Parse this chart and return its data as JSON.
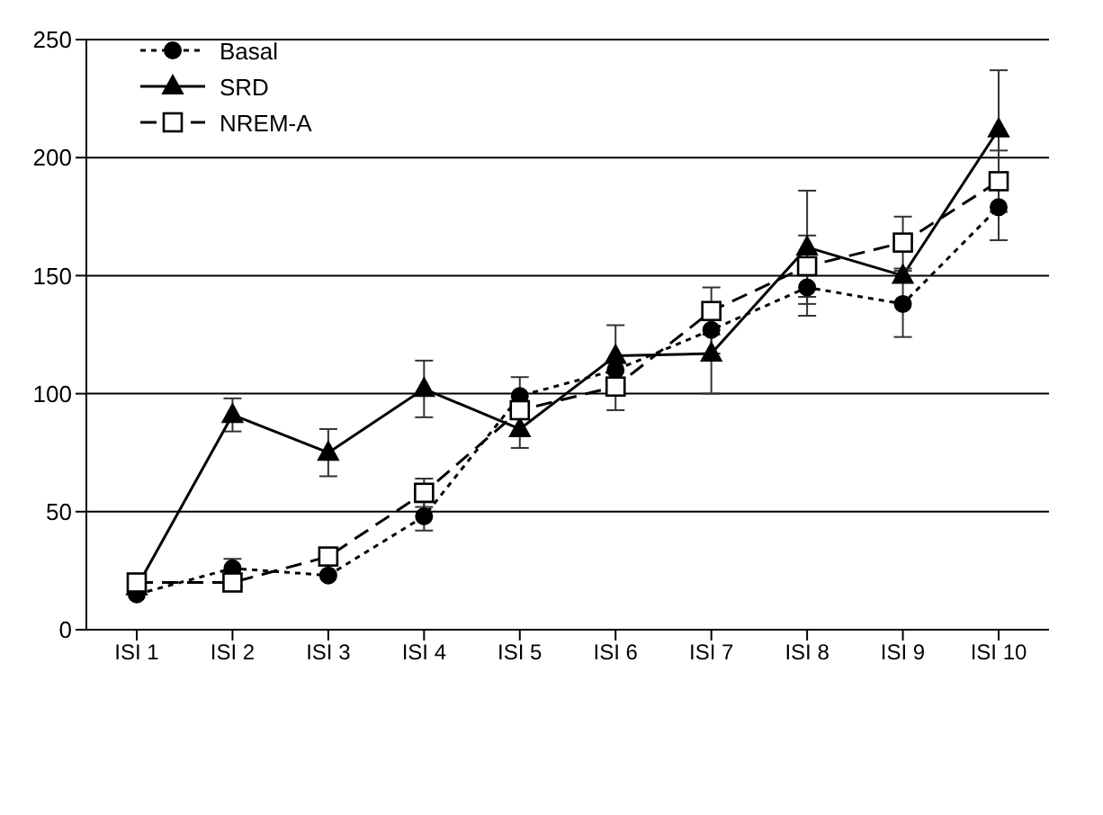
{
  "chart_data": {
    "type": "line",
    "categories": [
      "ISI 1",
      "ISI 2",
      "ISI 3",
      "ISI 4",
      "ISI 5",
      "ISI 6",
      "ISI 7",
      "ISI 8",
      "ISI 9",
      "ISI 10"
    ],
    "ylim": [
      0,
      250
    ],
    "yticks": [
      0,
      50,
      100,
      150,
      200,
      250
    ],
    "grid": "y",
    "legend": "top left",
    "series": [
      {
        "name": "Basal",
        "color": "#000000",
        "marker": "circle",
        "line_style": "dotted",
        "values": [
          15,
          26,
          23,
          48,
          99,
          110,
          127,
          145,
          138,
          179
        ],
        "errors": [
          null,
          4,
          null,
          6,
          8,
          null,
          10,
          12,
          14,
          14
        ]
      },
      {
        "name": "SRD",
        "color": "#000000",
        "marker": "triangle",
        "line_style": "solid",
        "values": [
          18,
          91,
          75,
          102,
          85,
          116,
          117,
          162,
          150,
          212
        ],
        "errors": [
          null,
          7,
          10,
          12,
          8,
          13,
          17,
          24,
          null,
          25
        ]
      },
      {
        "name": "NREM-A",
        "color": "#000000",
        "marker": "square",
        "line_style": "dashed",
        "values": [
          20,
          20,
          31,
          58,
          93,
          103,
          135,
          154,
          164,
          190
        ],
        "errors": [
          null,
          null,
          null,
          6,
          null,
          10,
          10,
          13,
          11,
          13
        ]
      }
    ]
  }
}
